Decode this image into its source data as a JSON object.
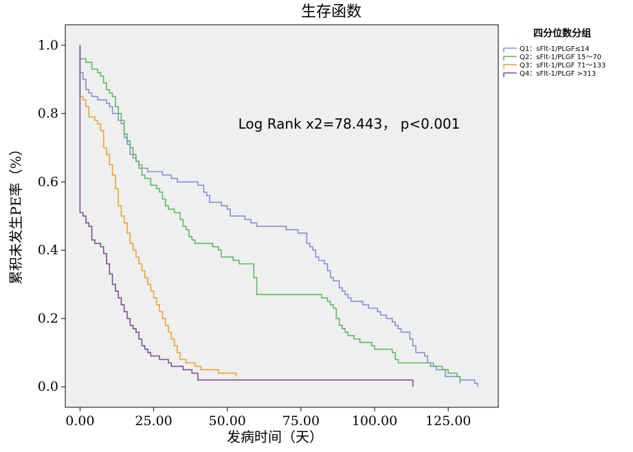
{
  "chart_data": {
    "type": "line",
    "subtype": "kaplan-meier step",
    "title": "生存函数",
    "xlabel": "发病时间（天）",
    "ylabel": "累积未发生PE率（%）",
    "xlim": [
      -5,
      142
    ],
    "ylim": [
      -0.06,
      1.06
    ],
    "xticks": [
      0,
      25,
      50,
      75,
      100,
      125
    ],
    "xtick_labels": [
      "0.00",
      "25.00",
      "50.00",
      "75.00",
      "100.00",
      "125.00"
    ],
    "yticks": [
      0.0,
      0.2,
      0.4,
      0.6,
      0.8,
      1.0
    ],
    "ytick_labels": [
      "0.0",
      "0.2",
      "0.4",
      "0.6",
      "0.8",
      "1.0"
    ],
    "grid": false,
    "plot_background": "#eef0f0",
    "legend": {
      "title": "四分位数分组",
      "placement": "outside-right-top"
    },
    "annotation": "Log Rank x2=78.443，  p<0.001",
    "series": [
      {
        "name": "Q1：sFlt-1/PLGF≤14",
        "color": "#8a8ad6",
        "points": [
          [
            0,
            1.0
          ],
          [
            0,
            0.92
          ],
          [
            1,
            0.9
          ],
          [
            2,
            0.87
          ],
          [
            3,
            0.86
          ],
          [
            4,
            0.85
          ],
          [
            6,
            0.84
          ],
          [
            9,
            0.83
          ],
          [
            10,
            0.82
          ],
          [
            11,
            0.8
          ],
          [
            13,
            0.78
          ],
          [
            14,
            0.77
          ],
          [
            15,
            0.73
          ],
          [
            16,
            0.71
          ],
          [
            17,
            0.68
          ],
          [
            18,
            0.67
          ],
          [
            19,
            0.66
          ],
          [
            20,
            0.65
          ],
          [
            21,
            0.64
          ],
          [
            23,
            0.63
          ],
          [
            28,
            0.62
          ],
          [
            31,
            0.61
          ],
          [
            33,
            0.6
          ],
          [
            40,
            0.59
          ],
          [
            42,
            0.57
          ],
          [
            43,
            0.56
          ],
          [
            44,
            0.54
          ],
          [
            48,
            0.53
          ],
          [
            50,
            0.52
          ],
          [
            51,
            0.5
          ],
          [
            56,
            0.49
          ],
          [
            58,
            0.48
          ],
          [
            60,
            0.47
          ],
          [
            66,
            0.47
          ],
          [
            70,
            0.46
          ],
          [
            74,
            0.45
          ],
          [
            77,
            0.42
          ],
          [
            78,
            0.41
          ],
          [
            79,
            0.4
          ],
          [
            80,
            0.38
          ],
          [
            81,
            0.37
          ],
          [
            83,
            0.36
          ],
          [
            84,
            0.34
          ],
          [
            85,
            0.32
          ],
          [
            86,
            0.31
          ],
          [
            88,
            0.29
          ],
          [
            89,
            0.28
          ],
          [
            90,
            0.27
          ],
          [
            91,
            0.26
          ],
          [
            92,
            0.25
          ],
          [
            96,
            0.24
          ],
          [
            98,
            0.23
          ],
          [
            101,
            0.22
          ],
          [
            102,
            0.21
          ],
          [
            104,
            0.2
          ],
          [
            106,
            0.19
          ],
          [
            107,
            0.18
          ],
          [
            108,
            0.17
          ],
          [
            109,
            0.16
          ],
          [
            112,
            0.14
          ],
          [
            113,
            0.12
          ],
          [
            114,
            0.1
          ],
          [
            117,
            0.09
          ],
          [
            118,
            0.07
          ],
          [
            120,
            0.06
          ],
          [
            121,
            0.05
          ],
          [
            124,
            0.03
          ],
          [
            125,
            0.03
          ],
          [
            129,
            0.02
          ],
          [
            130,
            0.02
          ],
          [
            134,
            0.01
          ],
          [
            135,
            0.0
          ]
        ]
      },
      {
        "name": "Q2：sFlt-1/PLGF 15～70",
        "color": "#5cb85c",
        "points": [
          [
            0,
            1.0
          ],
          [
            0,
            0.96
          ],
          [
            2,
            0.95
          ],
          [
            4,
            0.93
          ],
          [
            6,
            0.92
          ],
          [
            7,
            0.91
          ],
          [
            8,
            0.89
          ],
          [
            9,
            0.87
          ],
          [
            10,
            0.86
          ],
          [
            11,
            0.85
          ],
          [
            12,
            0.82
          ],
          [
            13,
            0.8
          ],
          [
            14,
            0.78
          ],
          [
            15,
            0.74
          ],
          [
            16,
            0.72
          ],
          [
            17,
            0.7
          ],
          [
            18,
            0.68
          ],
          [
            19,
            0.66
          ],
          [
            20,
            0.64
          ],
          [
            21,
            0.62
          ],
          [
            22,
            0.61
          ],
          [
            24,
            0.59
          ],
          [
            26,
            0.58
          ],
          [
            27,
            0.57
          ],
          [
            28,
            0.55
          ],
          [
            29,
            0.53
          ],
          [
            30,
            0.52
          ],
          [
            32,
            0.51
          ],
          [
            34,
            0.49
          ],
          [
            35,
            0.47
          ],
          [
            36,
            0.46
          ],
          [
            37,
            0.44
          ],
          [
            38,
            0.43
          ],
          [
            39,
            0.42
          ],
          [
            43,
            0.42
          ],
          [
            45,
            0.41
          ],
          [
            47,
            0.4
          ],
          [
            48,
            0.38
          ],
          [
            52,
            0.37
          ],
          [
            54,
            0.36
          ],
          [
            59,
            0.32
          ],
          [
            60,
            0.27
          ],
          [
            70,
            0.27
          ],
          [
            78,
            0.27
          ],
          [
            82,
            0.26
          ],
          [
            84,
            0.25
          ],
          [
            85,
            0.24
          ],
          [
            86,
            0.23
          ],
          [
            87,
            0.2
          ],
          [
            88,
            0.18
          ],
          [
            89,
            0.17
          ],
          [
            90,
            0.16
          ],
          [
            91,
            0.15
          ],
          [
            93,
            0.14
          ],
          [
            95,
            0.13
          ],
          [
            99,
            0.12
          ],
          [
            100,
            0.11
          ],
          [
            106,
            0.1
          ],
          [
            107,
            0.08
          ],
          [
            108,
            0.07
          ],
          [
            119,
            0.06
          ],
          [
            123,
            0.05
          ],
          [
            125,
            0.04
          ],
          [
            128,
            0.03
          ],
          [
            129,
            0.01
          ]
        ]
      },
      {
        "name": "Q3：sFlt-1/PLGF 71～133",
        "color": "#f0a030",
        "points": [
          [
            0,
            1.0
          ],
          [
            0,
            0.85
          ],
          [
            1,
            0.84
          ],
          [
            2,
            0.82
          ],
          [
            3,
            0.79
          ],
          [
            5,
            0.78
          ],
          [
            6,
            0.77
          ],
          [
            7,
            0.75
          ],
          [
            8,
            0.7
          ],
          [
            9,
            0.68
          ],
          [
            10,
            0.65
          ],
          [
            11,
            0.62
          ],
          [
            12,
            0.58
          ],
          [
            13,
            0.53
          ],
          [
            14,
            0.5
          ],
          [
            15,
            0.48
          ],
          [
            16,
            0.45
          ],
          [
            17,
            0.42
          ],
          [
            18,
            0.4
          ],
          [
            19,
            0.38
          ],
          [
            20,
            0.36
          ],
          [
            21,
            0.34
          ],
          [
            22,
            0.32
          ],
          [
            23,
            0.3
          ],
          [
            24,
            0.28
          ],
          [
            25,
            0.26
          ],
          [
            26,
            0.24
          ],
          [
            27,
            0.22
          ],
          [
            28,
            0.2
          ],
          [
            29,
            0.18
          ],
          [
            30,
            0.16
          ],
          [
            31,
            0.14
          ],
          [
            32,
            0.12
          ],
          [
            33,
            0.1
          ],
          [
            34,
            0.08
          ],
          [
            36,
            0.07
          ],
          [
            39,
            0.06
          ],
          [
            41,
            0.05
          ],
          [
            47,
            0.04
          ],
          [
            53,
            0.03
          ]
        ]
      },
      {
        "name": "Q4：sFlt-1/PLGF >313",
        "color": "#7d4b94",
        "points": [
          [
            0,
            1.0
          ],
          [
            0,
            0.51
          ],
          [
            1,
            0.5
          ],
          [
            2,
            0.48
          ],
          [
            3,
            0.47
          ],
          [
            4,
            0.43
          ],
          [
            5,
            0.42
          ],
          [
            7,
            0.41
          ],
          [
            8,
            0.39
          ],
          [
            9,
            0.36
          ],
          [
            10,
            0.33
          ],
          [
            11,
            0.3
          ],
          [
            12,
            0.28
          ],
          [
            13,
            0.26
          ],
          [
            14,
            0.24
          ],
          [
            15,
            0.22
          ],
          [
            16,
            0.2
          ],
          [
            17,
            0.18
          ],
          [
            18,
            0.17
          ],
          [
            19,
            0.16
          ],
          [
            20,
            0.14
          ],
          [
            21,
            0.12
          ],
          [
            22,
            0.11
          ],
          [
            23,
            0.1
          ],
          [
            24,
            0.09
          ],
          [
            27,
            0.08
          ],
          [
            30,
            0.07
          ],
          [
            31,
            0.06
          ],
          [
            35,
            0.05
          ],
          [
            38,
            0.04
          ],
          [
            40,
            0.02
          ],
          [
            113,
            0.02
          ],
          [
            113,
            0.0
          ]
        ]
      }
    ]
  }
}
